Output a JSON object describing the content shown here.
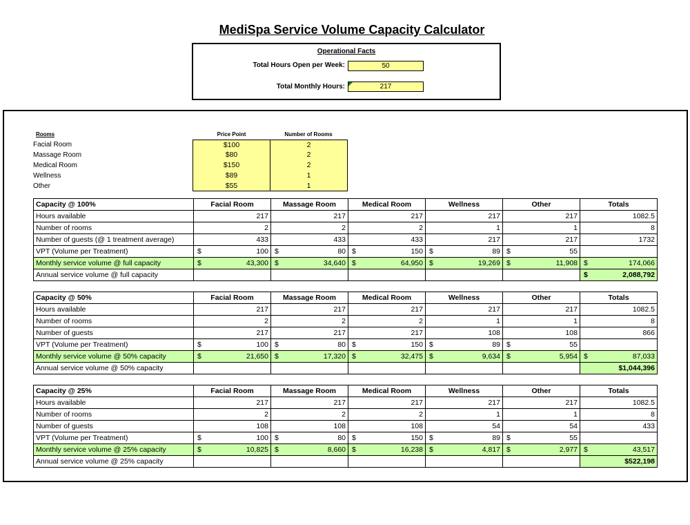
{
  "title": "MediSpa Service Volume Capacity Calculator",
  "operational": {
    "heading": "Operational Facts",
    "hours_label": "Total Hours Open per Week:",
    "hours_value": "50",
    "monthly_label": "Total Monthly Hours:",
    "monthly_value": "217"
  },
  "rooms": {
    "heading": "Rooms",
    "price_heading": "Price Point",
    "count_heading": "Number of Rooms",
    "items": [
      {
        "name": "Facial Room",
        "price": "$100",
        "count": "2"
      },
      {
        "name": "Massage Room",
        "price": "$80",
        "count": "2"
      },
      {
        "name": "Medical Room",
        "price": "$150",
        "count": "2"
      },
      {
        "name": "Wellness",
        "price": "$89",
        "count": "1"
      },
      {
        "name": "Other",
        "price": "$55",
        "count": "1"
      }
    ]
  },
  "columns": [
    "Facial Room",
    "Massage Room",
    "Medical Room",
    "Wellness",
    "Other",
    "Totals"
  ],
  "colors": {
    "input_yellow": "#ffff99",
    "result_green": "#ccffaa"
  },
  "tables": [
    {
      "title": "Capacity @ 100%",
      "hours_label": "Hours available",
      "hours": [
        "217",
        "217",
        "217",
        "217",
        "217",
        "1082.5"
      ],
      "rooms_label": "Number of rooms",
      "rooms": [
        "2",
        "2",
        "2",
        "1",
        "1",
        "8"
      ],
      "guests_label": "Number of guests (@ 1 treatment average)",
      "guests": [
        "433",
        "433",
        "433",
        "217",
        "217",
        "1732"
      ],
      "vpt_label": "VPT (Volume per Treatment)",
      "vpt": [
        "100",
        "80",
        "150",
        "89",
        "55"
      ],
      "monthly_label": "Monthly service volume @ full capacity",
      "monthly": [
        "43,300",
        "34,640",
        "64,950",
        "19,269",
        "11,908",
        "174,066"
      ],
      "annual_label": "Annual service volume @ full capacity",
      "annual_cur": "$",
      "annual": "2,088,792"
    },
    {
      "title": "Capacity @ 50%",
      "hours_label": "Hours available",
      "hours": [
        "217",
        "217",
        "217",
        "217",
        "217",
        "1082.5"
      ],
      "rooms_label": "Number of rooms",
      "rooms": [
        "2",
        "2",
        "2",
        "1",
        "1",
        "8"
      ],
      "guests_label": "Number of guests",
      "guests": [
        "217",
        "217",
        "217",
        "108",
        "108",
        "866"
      ],
      "vpt_label": "VPT (Volume per Treatment)",
      "vpt": [
        "100",
        "80",
        "150",
        "89",
        "55"
      ],
      "monthly_label": "Monthly service volume @ 50% capacity",
      "monthly": [
        "21,650",
        "17,320",
        "32,475",
        "9,634",
        "5,954",
        "87,033"
      ],
      "annual_label": "Annual service volume @ 50% capacity",
      "annual_cur": "",
      "annual": "$1,044,396"
    },
    {
      "title": "Capacity @ 25%",
      "hours_label": "Hours available",
      "hours": [
        "217",
        "217",
        "217",
        "217",
        "217",
        "1082.5"
      ],
      "rooms_label": "Number of rooms",
      "rooms": [
        "2",
        "2",
        "2",
        "1",
        "1",
        "8"
      ],
      "guests_label": "Number of guests",
      "guests": [
        "108",
        "108",
        "108",
        "54",
        "54",
        "433"
      ],
      "vpt_label": "VPT (Volume per Treatment)",
      "vpt": [
        "100",
        "80",
        "150",
        "89",
        "55"
      ],
      "monthly_label": "Monthly service volume @ 25% capacity",
      "monthly": [
        "10,825",
        "8,660",
        "16,238",
        "4,817",
        "2,977",
        "43,517"
      ],
      "annual_label": "Annual service volume @ 25% capacity",
      "annual_cur": "",
      "annual": "$522,198"
    }
  ],
  "currency_symbol": "$"
}
